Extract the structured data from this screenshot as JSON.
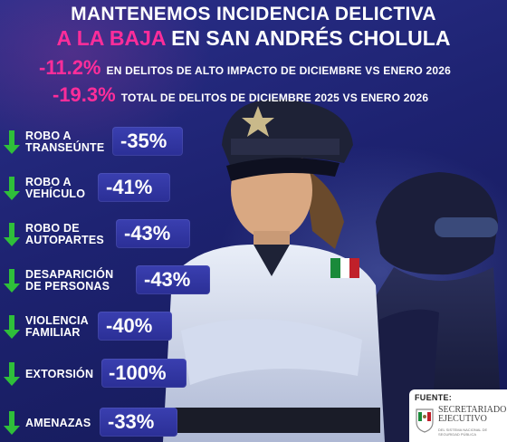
{
  "header": {
    "title_line1": "MANTENEMOS INCIDENCIA DELICTIVA",
    "title_line2_highlight": "A LA BAJA",
    "title_line2_rest": "EN SAN ANDRÉS CHOLULA"
  },
  "stats": [
    {
      "pct": "-11.2%",
      "desc": "EN DELITOS DE ALTO IMPACTO DE DICIEMBRE VS ENERO 2026"
    },
    {
      "pct": "-19.3%",
      "desc": "TOTAL DE DELITOS DE DICIEMBRE 2025 VS ENERO 2026"
    }
  ],
  "crimes": [
    {
      "line1": "ROBO A",
      "line2": "TRANSEÚNTE",
      "pct": "-35%"
    },
    {
      "line1": "ROBO A",
      "line2": "VEHÍCULO",
      "pct": "-41%"
    },
    {
      "line1": "ROBO DE",
      "line2": "AUTOPARTES",
      "pct": "-43%"
    },
    {
      "line1": "DESAPARICIÓN",
      "line2": "DE PERSONAS",
      "pct": "-43%"
    },
    {
      "line1": "VIOLENCIA",
      "line2": "FAMILIAR",
      "pct": "-40%"
    },
    {
      "line1": "EXTORSIÓN",
      "line2": "",
      "pct": "-100%"
    },
    {
      "line1": "AMENAZAS",
      "line2": "",
      "pct": "-33%"
    }
  ],
  "source": {
    "label": "FUENTE:",
    "name_line1": "SECRETARIADO",
    "name_line2": "EJECUTIVO",
    "sub": "DEL SISTEMA NACIONAL DE SEGURIDAD PÚBLICA"
  },
  "colors": {
    "accent_pink": "#ff2d9a",
    "arrow_green": "#2fbf3a",
    "pill_blue": "#2e33a0",
    "background": "#1a1f6b"
  },
  "icons": {
    "arrow": "down-arrow-icon",
    "logo": "sesnsp-seal-icon"
  }
}
